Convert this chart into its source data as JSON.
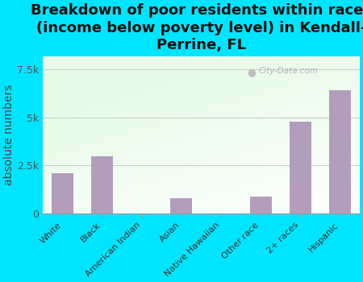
{
  "title": "Breakdown of poor residents within races\n(income below poverty level) in Kendall-\nPerrine, FL",
  "categories": [
    "White",
    "Black",
    "American Indian",
    "Asian",
    "Native Hawaiian",
    "Other race",
    "2+ races",
    "Hispanic"
  ],
  "values": [
    2100,
    3000,
    25,
    800,
    15,
    900,
    4800,
    6400
  ],
  "bar_color": "#b39dbd",
  "background_color": "#00e5ff",
  "ylabel": "absolute numbers",
  "ylim": [
    0,
    8200
  ],
  "yticks": [
    0,
    2500,
    5000,
    7500
  ],
  "ytick_labels": [
    "0",
    "2.5k",
    "5k",
    "7.5k"
  ],
  "watermark": "City-Data.com",
  "title_fontsize": 13,
  "ylabel_fontsize": 10,
  "grid_color": "#cccccc"
}
